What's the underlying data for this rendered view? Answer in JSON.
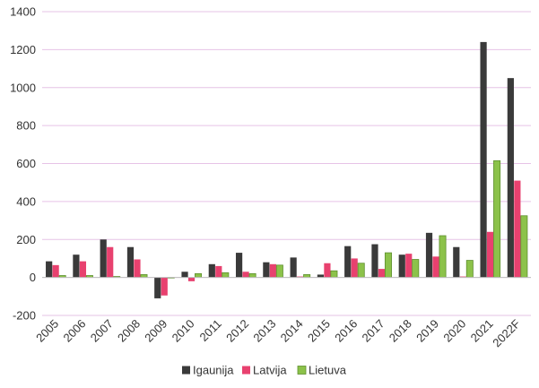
{
  "chart_data": {
    "type": "bar",
    "categories": [
      "2005",
      "2006",
      "2007",
      "2008",
      "2009",
      "2010",
      "2011",
      "2012",
      "2013",
      "2014",
      "2015",
      "2016",
      "2017",
      "2018",
      "2019",
      "2020",
      "2021",
      "2022F"
    ],
    "series": [
      {
        "name": "Igaunija",
        "color": "#3a3a3a",
        "values": [
          85,
          120,
          200,
          160,
          -110,
          30,
          70,
          130,
          80,
          105,
          15,
          165,
          175,
          120,
          235,
          160,
          1240,
          1050
        ]
      },
      {
        "name": "Latvija",
        "color": "#e8416f",
        "values": [
          65,
          85,
          160,
          95,
          -95,
          -20,
          60,
          30,
          70,
          5,
          75,
          100,
          45,
          125,
          110,
          5,
          240,
          510
        ]
      },
      {
        "name": "Lietuva",
        "color": "#8cc24a",
        "values": [
          10,
          10,
          5,
          15,
          0,
          20,
          25,
          20,
          65,
          15,
          35,
          75,
          130,
          95,
          220,
          90,
          615,
          325
        ]
      }
    ],
    "y_ticks": [
      -200,
      0,
      200,
      400,
      600,
      800,
      1000,
      1200,
      1400
    ],
    "ylim": [
      -200,
      1400
    ],
    "grid": true,
    "legend_position": "bottom"
  }
}
